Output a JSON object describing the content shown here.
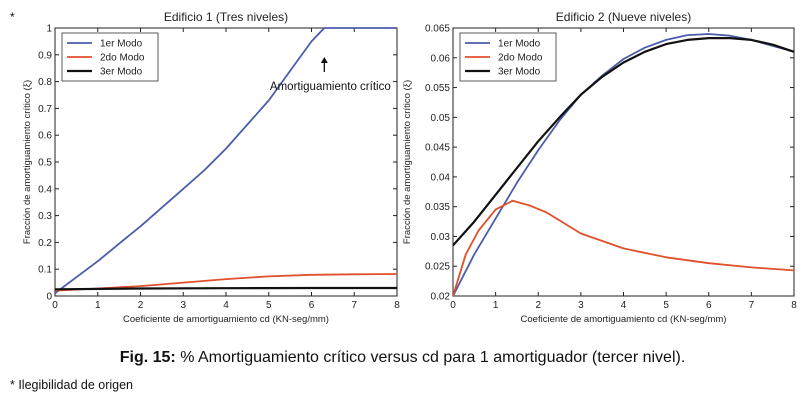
{
  "asterisk": "*",
  "caption": {
    "label": "Fig. 15:",
    "text": "% Amortiguamiento crítico versus cd para 1 amortiguador (tercer nivel)."
  },
  "footnote": "* Ilegibilidad de origen",
  "chart_data": [
    {
      "type": "line",
      "title": "Edificio 1 (Tres niveles)",
      "xlabel": "Coeficiente de amortiguamiento cd (KN-seg/mm)",
      "ylabel": "Fracción de amortiguamiento crítico (ξ)",
      "xlim": [
        0,
        8
      ],
      "ylim": [
        0,
        1
      ],
      "xticks": [
        0,
        1,
        2,
        3,
        4,
        5,
        6,
        7,
        8
      ],
      "yticks": [
        0,
        0.1,
        0.2,
        0.3,
        0.4,
        0.5,
        0.6,
        0.7,
        0.8,
        0.9,
        1
      ],
      "ytick_labels": [
        "0",
        "0.1",
        "0.2",
        "0.3",
        "0.4",
        "0.5",
        "0.6",
        "0.7",
        "0.8",
        "0.9",
        "1"
      ],
      "legend_position": "top-left",
      "annotation": {
        "text": "Amortiguamiento crítico",
        "x": 6.3,
        "y": 1.0
      },
      "series": [
        {
          "name": "1er Modo",
          "color": "#4a5dab",
          "x": [
            0,
            0.5,
            1,
            1.5,
            2,
            2.5,
            3,
            3.5,
            4,
            4.5,
            5,
            5.5,
            6,
            6.3,
            7,
            8
          ],
          "y": [
            0.01,
            0.07,
            0.13,
            0.195,
            0.26,
            0.33,
            0.4,
            0.47,
            0.55,
            0.64,
            0.73,
            0.84,
            0.95,
            1.0,
            1.0,
            1.0
          ]
        },
        {
          "name": "2do Modo",
          "color": "#e0502c",
          "x": [
            0,
            1,
            2,
            3,
            4,
            5,
            6,
            7,
            8
          ],
          "y": [
            0.02,
            0.028,
            0.037,
            0.05,
            0.063,
            0.073,
            0.079,
            0.081,
            0.082
          ]
        },
        {
          "name": "3er Modo",
          "color": "#111111",
          "x": [
            0,
            2,
            4,
            6,
            8
          ],
          "y": [
            0.025,
            0.028,
            0.029,
            0.03,
            0.03
          ]
        }
      ]
    },
    {
      "type": "line",
      "title": "Edificio 2 (Nueve niveles)",
      "xlabel": "Coeficiente de amortiguamiento cd (KN-seg/mm)",
      "ylabel": "Fracción de amortiguamiento crítico (ξ)",
      "xlim": [
        0,
        8
      ],
      "ylim": [
        0.02,
        0.065
      ],
      "xticks": [
        0,
        1,
        2,
        3,
        4,
        5,
        6,
        7,
        8
      ],
      "yticks": [
        0.02,
        0.025,
        0.03,
        0.035,
        0.04,
        0.045,
        0.05,
        0.055,
        0.06,
        0.065
      ],
      "ytick_labels": [
        "0.02",
        "0.025",
        "0.03",
        "0.035",
        "0.04",
        "0.045",
        "0.05",
        "0.055",
        "0.06",
        "0.065"
      ],
      "legend_position": "top-left",
      "series": [
        {
          "name": "1er Modo",
          "color": "#4a5dab",
          "x": [
            0,
            0.5,
            1,
            1.5,
            2,
            2.5,
            3,
            3.5,
            4,
            4.5,
            5,
            5.5,
            6,
            6.5,
            7,
            7.5,
            8
          ],
          "y": [
            0.02,
            0.027,
            0.033,
            0.039,
            0.0445,
            0.0495,
            0.0538,
            0.057,
            0.0598,
            0.0617,
            0.063,
            0.0638,
            0.064,
            0.0637,
            0.063,
            0.062,
            0.061
          ]
        },
        {
          "name": "2do Modo",
          "color": "#e0502c",
          "x": [
            0,
            0.3,
            0.6,
            1,
            1.4,
            1.8,
            2.2,
            3,
            4,
            5,
            6,
            7,
            8
          ],
          "y": [
            0.02,
            0.027,
            0.031,
            0.0345,
            0.036,
            0.0352,
            0.034,
            0.0305,
            0.028,
            0.0265,
            0.0255,
            0.0248,
            0.0243
          ]
        },
        {
          "name": "3er Modo",
          "color": "#111111",
          "x": [
            0,
            0.5,
            1,
            1.5,
            2,
            2.5,
            3,
            3.5,
            4,
            4.5,
            5,
            5.5,
            6,
            6.5,
            7,
            7.5,
            8
          ],
          "y": [
            0.0285,
            0.0325,
            0.037,
            0.0415,
            0.046,
            0.05,
            0.0538,
            0.0568,
            0.0592,
            0.061,
            0.0623,
            0.063,
            0.0633,
            0.0633,
            0.063,
            0.0622,
            0.061
          ]
        }
      ]
    }
  ]
}
